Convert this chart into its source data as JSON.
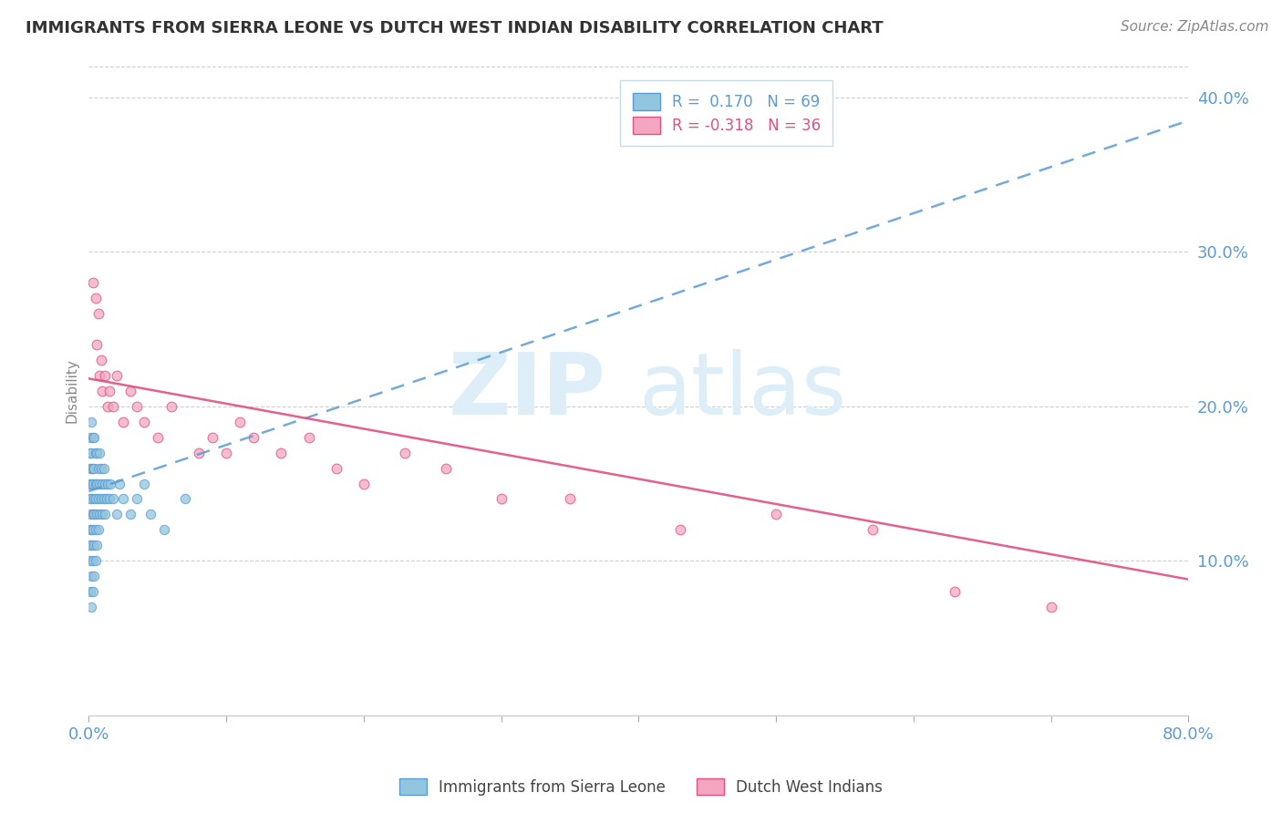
{
  "title": "IMMIGRANTS FROM SIERRA LEONE VS DUTCH WEST INDIAN DISABILITY CORRELATION CHART",
  "source": "Source: ZipAtlas.com",
  "ylabel": "Disability",
  "r_blue": 0.17,
  "n_blue": 69,
  "r_pink": -0.318,
  "n_pink": 36,
  "xlim": [
    0.0,
    0.8
  ],
  "ylim": [
    0.0,
    0.42
  ],
  "blue_color": "#92c5de",
  "pink_color": "#f4a6c0",
  "trend_blue_color": "#5b9bd5",
  "trend_pink_color": "#e05080",
  "legend_blue_label": "Immigrants from Sierra Leone",
  "legend_pink_label": "Dutch West Indians",
  "watermark_zip": "ZIP",
  "watermark_atlas": "atlas",
  "background_color": "#ffffff",
  "blue_x": [
    0.001,
    0.001,
    0.001,
    0.001,
    0.001,
    0.001,
    0.001,
    0.001,
    0.001,
    0.001,
    0.002,
    0.002,
    0.002,
    0.002,
    0.002,
    0.002,
    0.002,
    0.002,
    0.002,
    0.003,
    0.003,
    0.003,
    0.003,
    0.003,
    0.003,
    0.003,
    0.004,
    0.004,
    0.004,
    0.004,
    0.004,
    0.004,
    0.005,
    0.005,
    0.005,
    0.005,
    0.005,
    0.006,
    0.006,
    0.006,
    0.006,
    0.007,
    0.007,
    0.007,
    0.008,
    0.008,
    0.008,
    0.009,
    0.009,
    0.01,
    0.01,
    0.011,
    0.011,
    0.012,
    0.012,
    0.013,
    0.014,
    0.015,
    0.016,
    0.018,
    0.02,
    0.022,
    0.025,
    0.03,
    0.035,
    0.04,
    0.045,
    0.055,
    0.07
  ],
  "blue_y": [
    0.08,
    0.1,
    0.11,
    0.12,
    0.13,
    0.14,
    0.15,
    0.16,
    0.17,
    0.18,
    0.07,
    0.09,
    0.11,
    0.12,
    0.14,
    0.15,
    0.16,
    0.17,
    0.19,
    0.08,
    0.1,
    0.12,
    0.13,
    0.15,
    0.16,
    0.18,
    0.09,
    0.11,
    0.13,
    0.14,
    0.16,
    0.18,
    0.1,
    0.12,
    0.14,
    0.15,
    0.17,
    0.11,
    0.13,
    0.15,
    0.17,
    0.12,
    0.14,
    0.16,
    0.13,
    0.15,
    0.17,
    0.14,
    0.16,
    0.13,
    0.15,
    0.14,
    0.16,
    0.13,
    0.15,
    0.14,
    0.15,
    0.14,
    0.15,
    0.14,
    0.13,
    0.15,
    0.14,
    0.13,
    0.14,
    0.15,
    0.13,
    0.12,
    0.14
  ],
  "pink_x": [
    0.003,
    0.005,
    0.006,
    0.007,
    0.008,
    0.009,
    0.01,
    0.012,
    0.014,
    0.015,
    0.018,
    0.02,
    0.025,
    0.03,
    0.035,
    0.04,
    0.05,
    0.06,
    0.08,
    0.09,
    0.1,
    0.11,
    0.12,
    0.14,
    0.16,
    0.18,
    0.2,
    0.23,
    0.26,
    0.3,
    0.35,
    0.43,
    0.5,
    0.57,
    0.63,
    0.7
  ],
  "pink_y": [
    0.28,
    0.27,
    0.24,
    0.26,
    0.22,
    0.23,
    0.21,
    0.22,
    0.2,
    0.21,
    0.2,
    0.22,
    0.19,
    0.21,
    0.2,
    0.19,
    0.18,
    0.2,
    0.17,
    0.18,
    0.17,
    0.19,
    0.18,
    0.17,
    0.18,
    0.16,
    0.15,
    0.17,
    0.16,
    0.14,
    0.14,
    0.12,
    0.13,
    0.12,
    0.08,
    0.07
  ],
  "trend_blue_x0": 0.0,
  "trend_blue_x1": 0.8,
  "trend_blue_y0": 0.145,
  "trend_blue_y1": 0.385,
  "trend_pink_x0": 0.0,
  "trend_pink_x1": 0.8,
  "trend_pink_y0": 0.218,
  "trend_pink_y1": 0.088
}
